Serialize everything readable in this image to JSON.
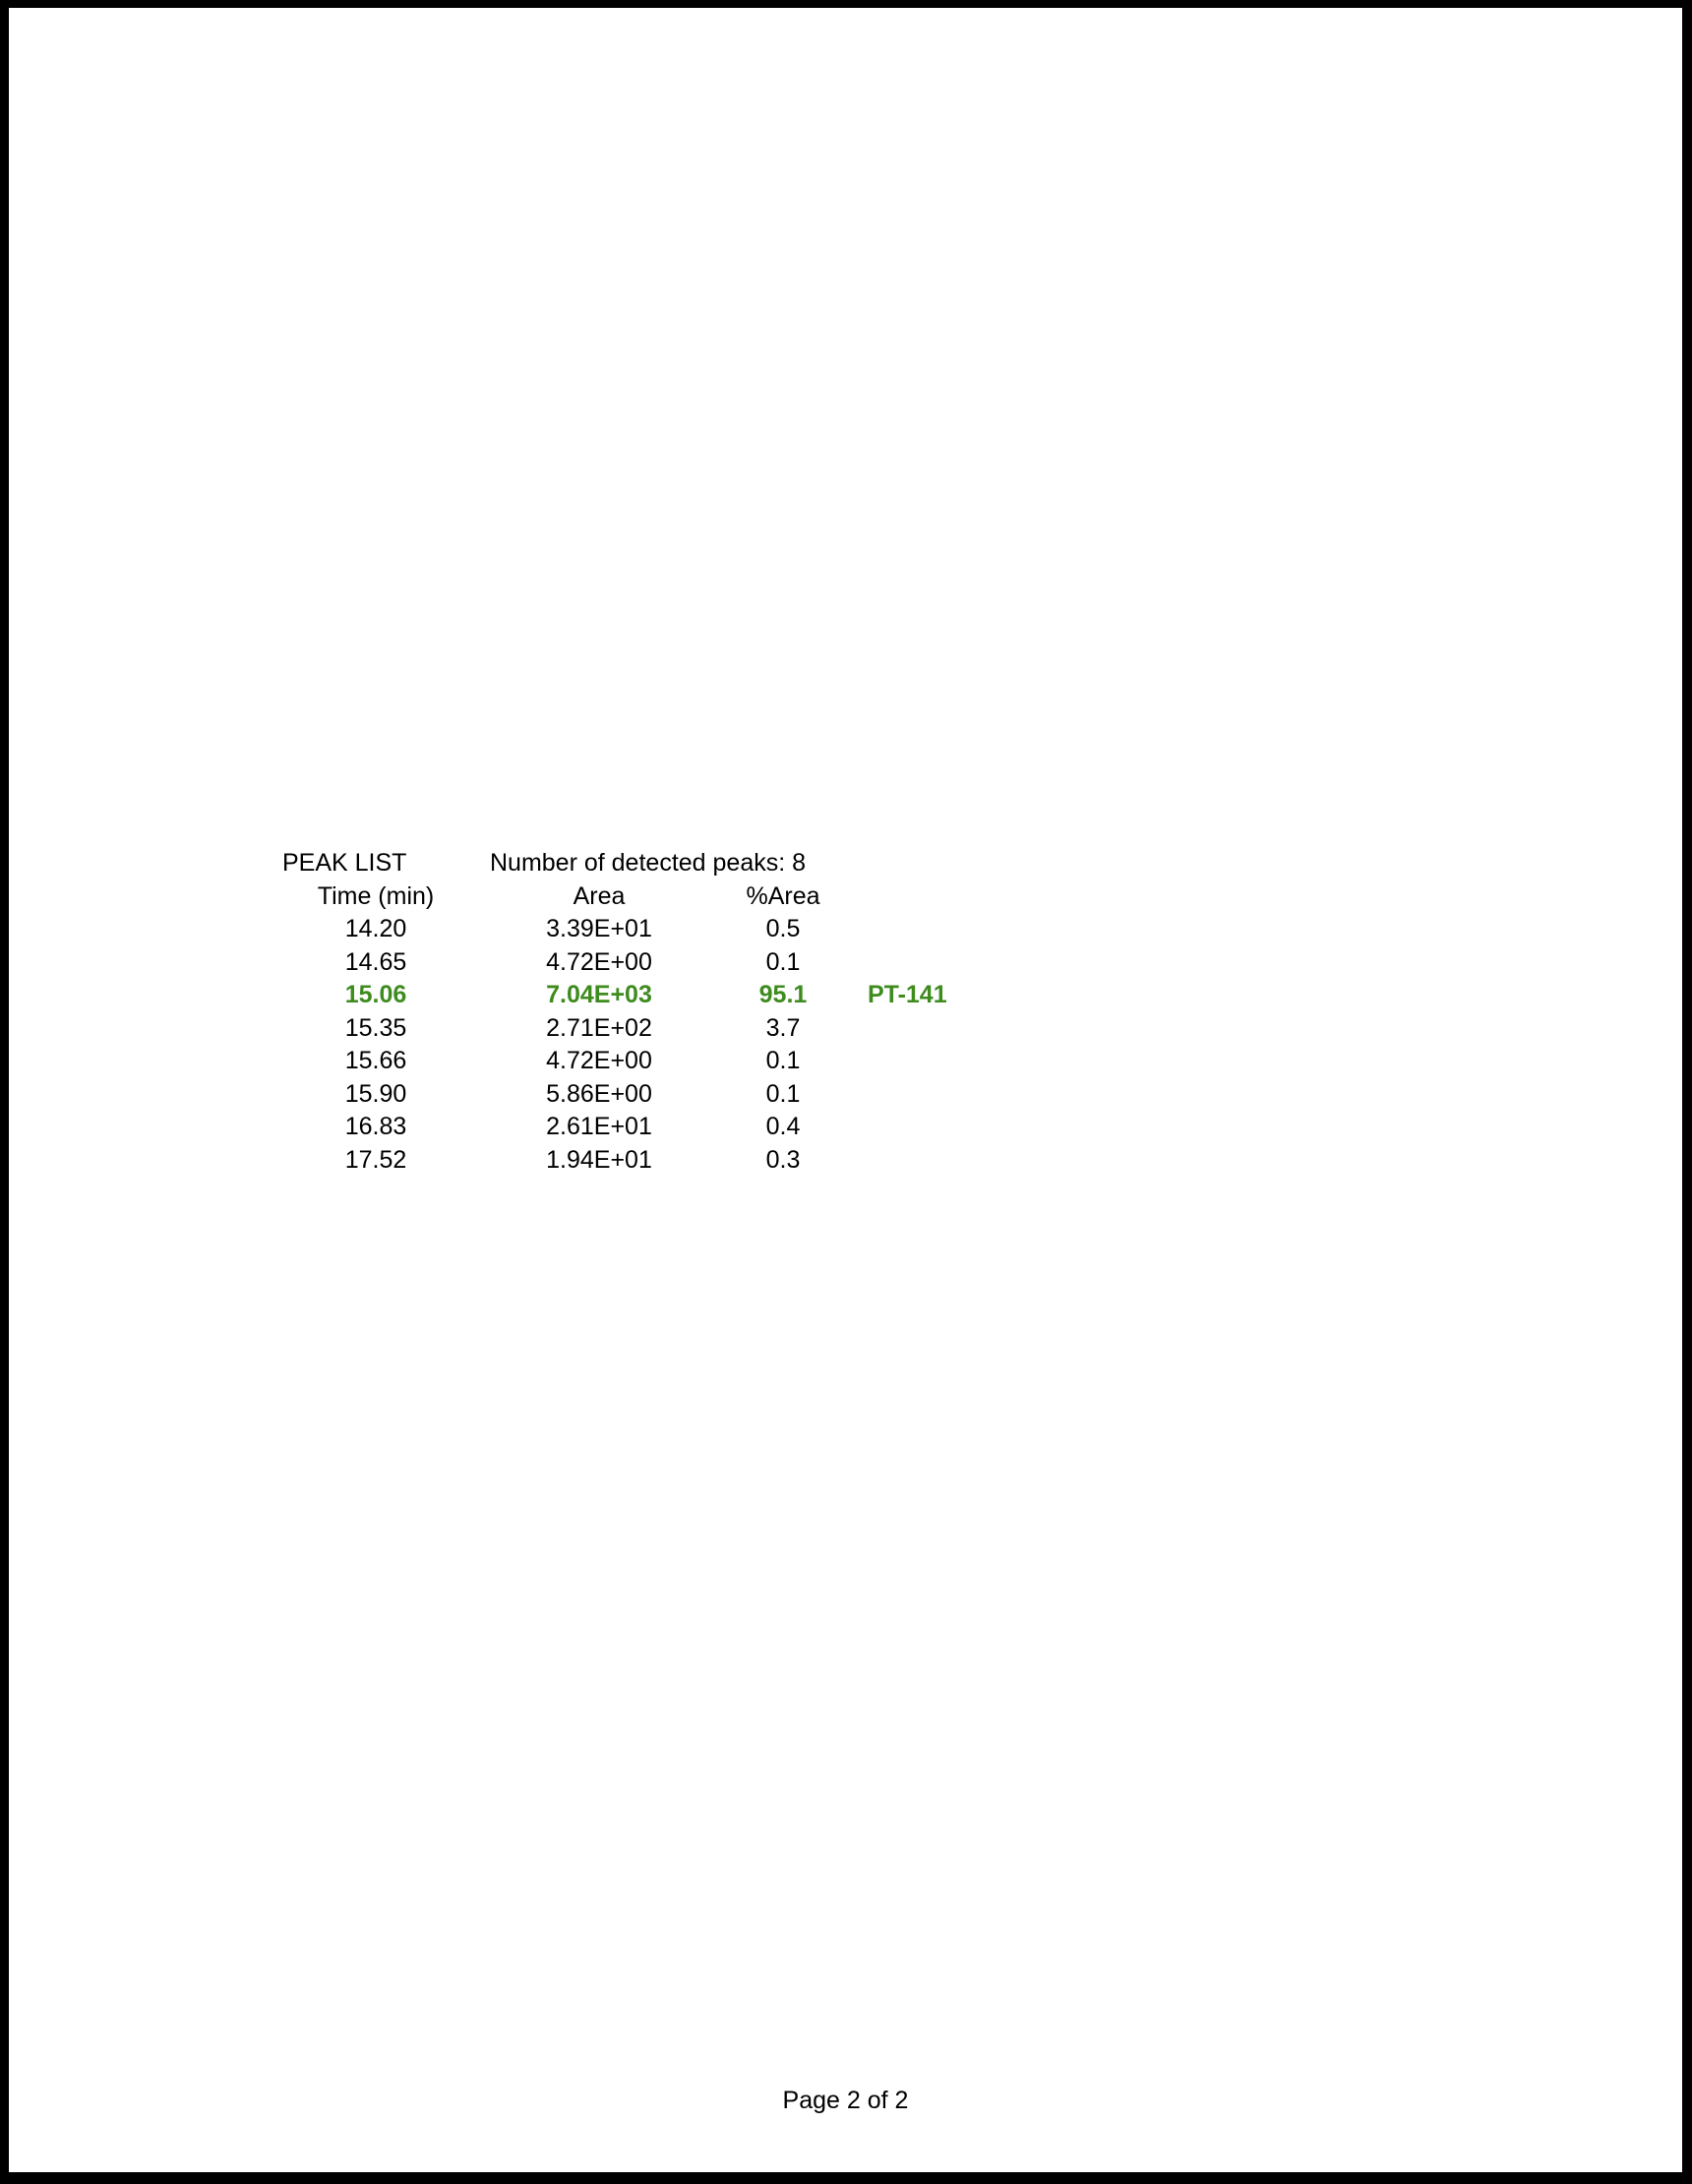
{
  "document": {
    "peak_list": {
      "title": "PEAK LIST",
      "summary": "Number of detected peaks: 8",
      "columns": {
        "time": "Time (min)",
        "area": "Area",
        "pct_area": "%Area"
      },
      "rows": [
        {
          "time": "14.20",
          "area": "3.39E+01",
          "pct_area": "0.5",
          "label": "",
          "highlight": false
        },
        {
          "time": "14.65",
          "area": "4.72E+00",
          "pct_area": "0.1",
          "label": "",
          "highlight": false
        },
        {
          "time": "15.06",
          "area": "7.04E+03",
          "pct_area": "95.1",
          "label": "PT-141",
          "highlight": true
        },
        {
          "time": "15.35",
          "area": "2.71E+02",
          "pct_area": "3.7",
          "label": "",
          "highlight": false
        },
        {
          "time": "15.66",
          "area": "4.72E+00",
          "pct_area": "0.1",
          "label": "",
          "highlight": false
        },
        {
          "time": "15.90",
          "area": "5.86E+00",
          "pct_area": "0.1",
          "label": "",
          "highlight": false
        },
        {
          "time": "16.83",
          "area": "2.61E+01",
          "pct_area": "0.4",
          "label": "",
          "highlight": false
        },
        {
          "time": "17.52",
          "area": "1.94E+01",
          "pct_area": "0.3",
          "label": "",
          "highlight": false
        }
      ]
    },
    "footer": {
      "page_label": "Page 2 of 2"
    },
    "colors": {
      "highlight_green": "#3e8b1e",
      "text": "#000000"
    }
  }
}
